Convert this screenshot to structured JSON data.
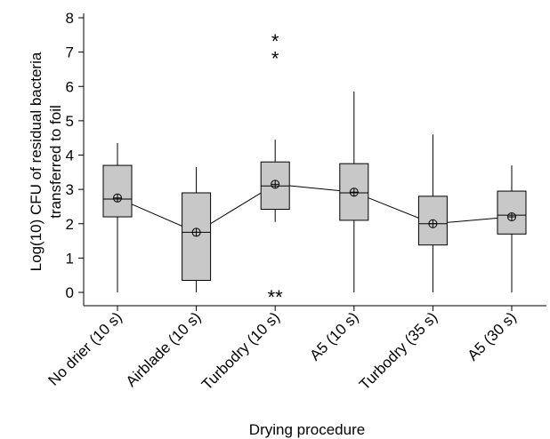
{
  "chart_data": {
    "type": "box",
    "xlabel": "Drying procedure",
    "ylabel_lines": [
      "Log(10) CFU of residual bacteria",
      "transferred to foil"
    ],
    "ylim": [
      -0.4,
      8.2
    ],
    "yticks": [
      "0",
      "1",
      "2",
      "3",
      "4",
      "5",
      "6",
      "7",
      "8"
    ],
    "categories": [
      "No drier (10 s)",
      "Airblade (10 s)",
      "Turbodry (10 s)",
      "A5 (10 s)",
      "Turbodry (35 s)",
      "A5 (30 s)"
    ],
    "box_color": "#c8c8c8",
    "series": [
      {
        "category": "No drier (10 s)",
        "min": 0,
        "q1": 2.2,
        "median": 2.72,
        "q3": 3.7,
        "max": 4.35,
        "mean": 2.75
      },
      {
        "category": "Airblade (10 s)",
        "min": 0,
        "q1": 0.35,
        "median": 1.75,
        "q3": 2.9,
        "max": 3.65,
        "mean": 1.75
      },
      {
        "category": "Turbodry (10 s)",
        "min": 2.05,
        "q1": 2.42,
        "median": 3.1,
        "q3": 3.8,
        "max": 4.45,
        "mean": 3.15
      },
      {
        "category": "A5 (10 s)",
        "min": 0,
        "q1": 2.1,
        "median": 2.9,
        "q3": 3.75,
        "max": 5.85,
        "mean": 2.92
      },
      {
        "category": "Turbodry (35 s)",
        "min": 0,
        "q1": 1.38,
        "median": 2.0,
        "q3": 2.8,
        "max": 4.6,
        "mean": 2.0
      },
      {
        "category": "A5 (30 s)",
        "min": 0,
        "q1": 1.7,
        "median": 2.25,
        "q3": 2.95,
        "max": 3.7,
        "mean": 2.2
      }
    ],
    "outliers": [
      {
        "category_index": 2,
        "y": 7.4,
        "label": "*"
      },
      {
        "category_index": 2,
        "y": 6.9,
        "label": "*"
      },
      {
        "category_index": 2,
        "y": -0.05,
        "label": "**"
      }
    ]
  }
}
